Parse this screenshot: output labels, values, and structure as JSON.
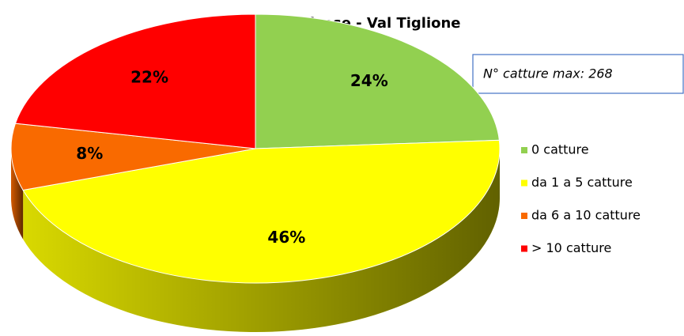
{
  "chart_data": {
    "type": "pie",
    "title": "Progetto Nicese - Val Tiglione",
    "annotation": "N° catture max: 268",
    "categories": [
      "0 catture",
      "da 1 a 5 catture",
      "da 6 a 10 catture",
      "> 10 catture"
    ],
    "values": [
      24,
      46,
      8,
      22
    ],
    "value_labels": [
      "24%",
      "46%",
      "8%",
      "22%"
    ],
    "colors": [
      "#92d050",
      "#ffff00",
      "#f96a00",
      "#ff0000"
    ]
  }
}
